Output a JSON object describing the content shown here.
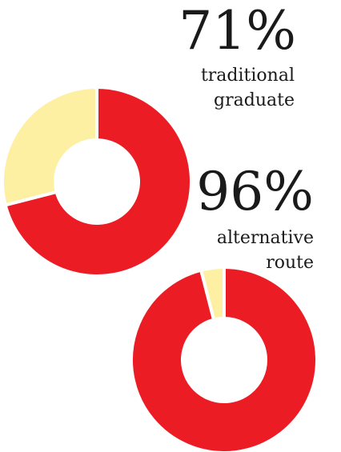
{
  "chart_data": [
    {
      "type": "pie",
      "title": "71%",
      "subtitle_lines": [
        "traditional",
        "graduate"
      ],
      "categories": [
        "",
        ""
      ],
      "values": [
        71,
        29
      ],
      "colors": [
        "#ec1c24",
        "#fdf0a2"
      ]
    },
    {
      "type": "pie",
      "title": "96%",
      "subtitle_lines": [
        "alternative",
        "route"
      ],
      "categories": [
        "",
        ""
      ],
      "values": [
        96,
        4
      ],
      "colors": [
        "#ec1c24",
        "#fdf0a2"
      ]
    }
  ]
}
